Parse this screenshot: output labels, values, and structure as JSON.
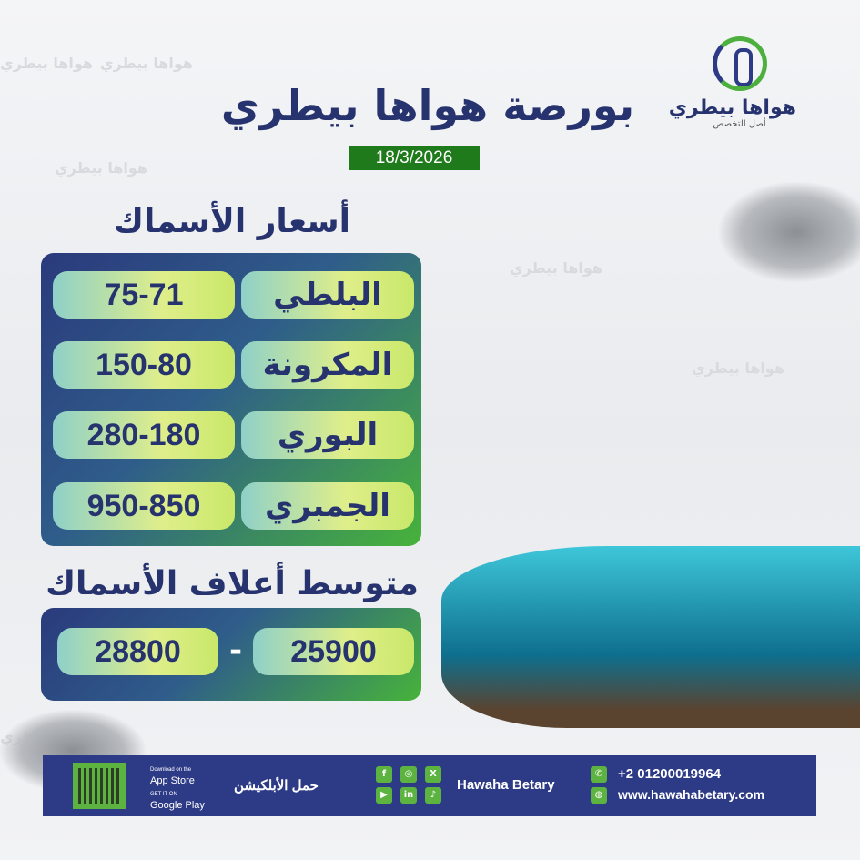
{
  "brand": {
    "name": "هواها بيطري",
    "tagline": "أصل التخصص"
  },
  "header": {
    "title": "بورصة هواها بيطري",
    "date": "18/3/2026"
  },
  "fish_prices": {
    "heading": "أسعار  الأسماك",
    "items": [
      {
        "name": "البلطي",
        "price": "75-71"
      },
      {
        "name": "المكرونة",
        "price": "150-80"
      },
      {
        "name": "البوري",
        "price": "280-180"
      },
      {
        "name": "الجمبري",
        "price": "950-850"
      }
    ]
  },
  "feed": {
    "heading": "متوسط أعلاف الأسماك",
    "low": "25900",
    "high": "28800",
    "separator": "-"
  },
  "footer": {
    "app_store_small": "Download on the",
    "app_store": "App Store",
    "google_small": "GET IT ON",
    "google_play": "Google Play",
    "download_app": "حمل الأبلكيشن",
    "social_name": "Hawaha Betary",
    "phone": "+2 01200019964",
    "website": "www.hawahabetary.com",
    "social_icons": [
      "facebook-icon",
      "instagram-icon",
      "x-icon",
      "youtube-icon",
      "linkedin-icon",
      "tiktok-icon"
    ]
  },
  "colors": {
    "navy": "#2d3b86",
    "green": "#1f7a1b",
    "accent_green": "#5cb33f"
  }
}
